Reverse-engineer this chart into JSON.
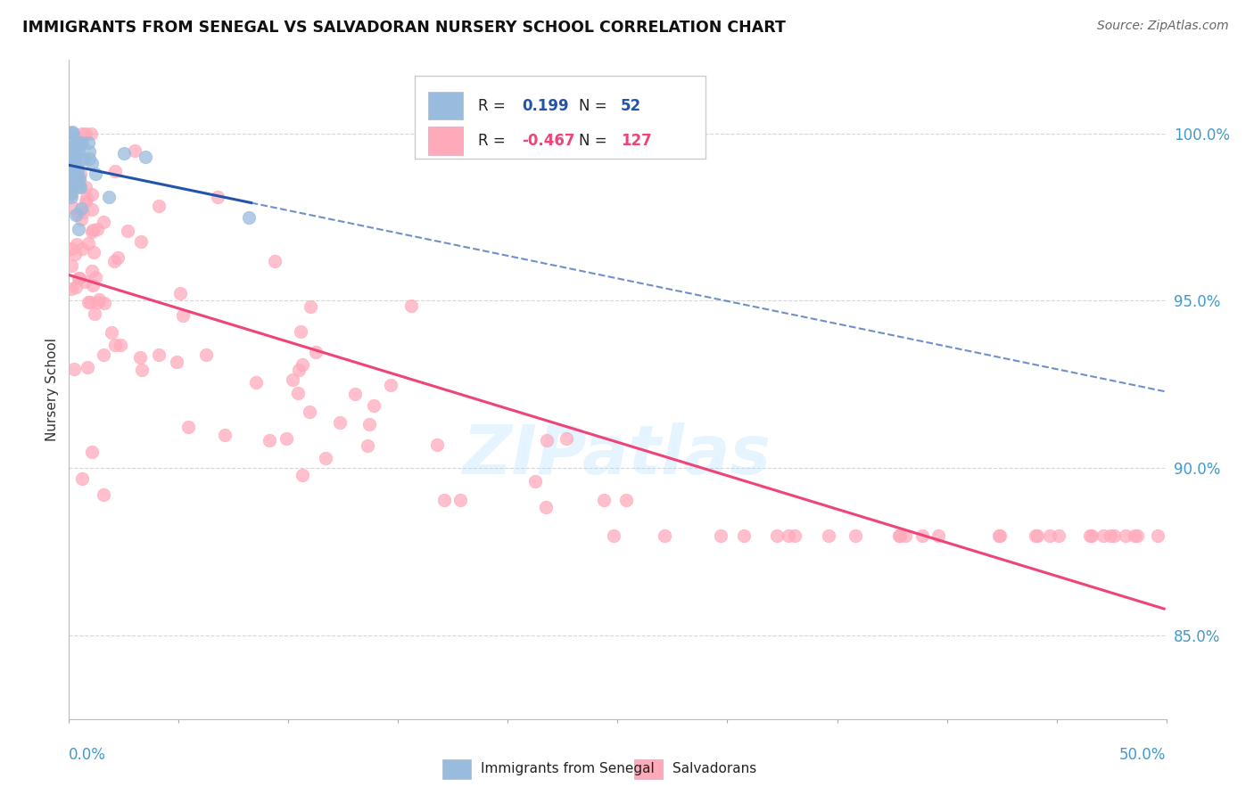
{
  "title": "IMMIGRANTS FROM SENEGAL VS SALVADORAN NURSERY SCHOOL CORRELATION CHART",
  "source": "Source: ZipAtlas.com",
  "ylabel": "Nursery School",
  "blue_R": 0.199,
  "blue_N": 52,
  "pink_R": -0.467,
  "pink_N": 127,
  "xlim": [
    0.0,
    0.5
  ],
  "ylim": [
    0.825,
    1.022
  ],
  "blue_color": "#99BBDD",
  "pink_color": "#FFAABB",
  "blue_line_color": "#2255AA",
  "pink_line_color": "#EE4477",
  "legend_text_color": "#2255AA",
  "pink_legend_text_color": "#EE4477",
  "ytick_color": "#4499CC",
  "watermark": "ZIPatlas",
  "seed": 42
}
